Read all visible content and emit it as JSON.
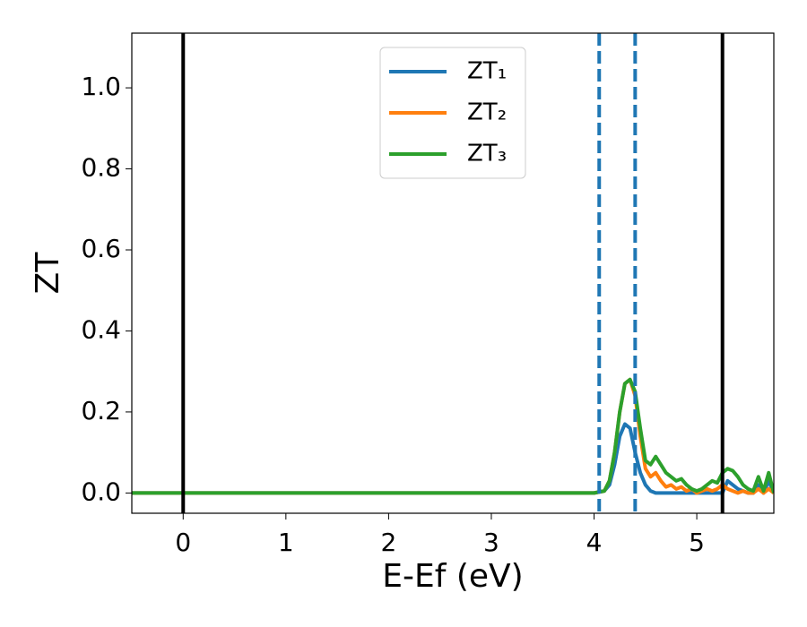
{
  "chart_data": {
    "type": "line",
    "x_label": "E-Ef (eV)",
    "y_label": "ZT",
    "x": [
      -0.5,
      4.0,
      4.1,
      4.15,
      4.2,
      4.25,
      4.3,
      4.35,
      4.4,
      4.45,
      4.5,
      4.55,
      4.6,
      4.65,
      4.7,
      4.75,
      4.8,
      4.85,
      4.9,
      4.95,
      5.0,
      5.05,
      5.1,
      5.15,
      5.2,
      5.25,
      5.3,
      5.35,
      5.4,
      5.45,
      5.5,
      5.55,
      5.6,
      5.65,
      5.7,
      5.75
    ],
    "series": [
      {
        "name": "ZT₁",
        "color": "#1f77b4",
        "values": [
          0,
          0,
          0.005,
          0.02,
          0.07,
          0.14,
          0.17,
          0.16,
          0.1,
          0.05,
          0.02,
          0.005,
          0,
          0,
          0,
          0,
          0,
          0,
          0,
          0,
          0,
          0,
          0,
          0,
          0,
          0,
          0.03,
          0.02,
          0.01,
          0.005,
          0,
          0,
          0.02,
          0,
          0.03,
          0
        ]
      },
      {
        "name": "ZT₂",
        "color": "#ff7f0e",
        "values": [
          0,
          0,
          0.005,
          0.03,
          0.1,
          0.2,
          0.27,
          0.28,
          0.24,
          0.14,
          0.06,
          0.04,
          0.05,
          0.03,
          0.015,
          0.02,
          0.01,
          0.015,
          0.005,
          0.01,
          0,
          0.005,
          0.01,
          0.005,
          0.01,
          0.02,
          0.01,
          0.005,
          0,
          0.005,
          0,
          0,
          0.01,
          0,
          0.01,
          0
        ]
      },
      {
        "name": "ZT₃",
        "color": "#2ca02c",
        "values": [
          0,
          0,
          0.005,
          0.03,
          0.1,
          0.2,
          0.27,
          0.28,
          0.25,
          0.16,
          0.08,
          0.07,
          0.09,
          0.07,
          0.05,
          0.04,
          0.03,
          0.035,
          0.02,
          0.01,
          0.005,
          0.01,
          0.02,
          0.03,
          0.025,
          0.05,
          0.06,
          0.055,
          0.04,
          0.02,
          0.01,
          0.005,
          0.04,
          0.005,
          0.05,
          0
        ]
      }
    ],
    "vlines": [
      {
        "x": 0,
        "color": "#000000",
        "dashed": false
      },
      {
        "x": 5.25,
        "color": "#000000",
        "dashed": false
      },
      {
        "x": 4.05,
        "color": "#1f77b4",
        "dashed": true
      },
      {
        "x": 4.4,
        "color": "#1f77b4",
        "dashed": true
      }
    ],
    "xlim": [
      -0.5,
      5.75
    ],
    "ylim": [
      -0.05,
      1.135
    ],
    "xticks": [
      0,
      1,
      2,
      3,
      4,
      5
    ],
    "yticks": [
      {
        "value": 0,
        "label": "0.0"
      },
      {
        "value": 0.2,
        "label": "0.2"
      },
      {
        "value": 0.4,
        "label": "0.4"
      },
      {
        "value": 0.6,
        "label": "0.6"
      },
      {
        "value": 0.8,
        "label": "0.8"
      },
      {
        "value": 1.0,
        "label": "1.0"
      }
    ],
    "grid": false,
    "legend": "upper center"
  }
}
